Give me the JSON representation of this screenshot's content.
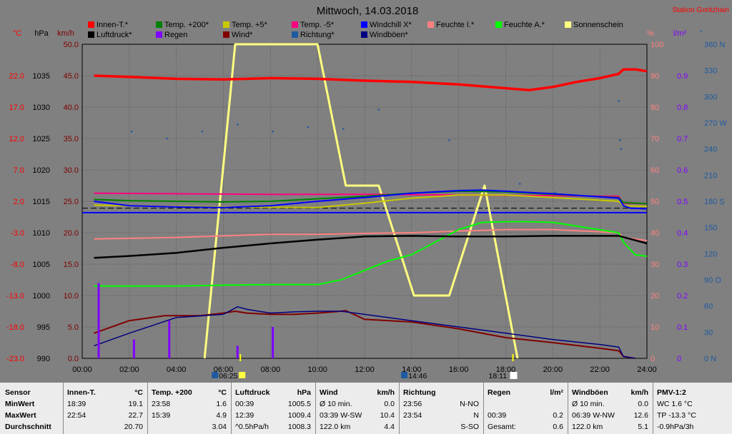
{
  "header": {
    "title": "Mittwoch, 14.03.2018",
    "station": "Station Goritzhain"
  },
  "axis_units": {
    "celsius": "°C",
    "hpa": "hPa",
    "kmh": "km/h",
    "percent": "%",
    "rain": "l/m²",
    "degree": "°"
  },
  "legend": [
    {
      "label": "Innen-T.*",
      "color": "#ff0000"
    },
    {
      "label": "Luftdruck*",
      "color": "#000000"
    },
    {
      "label": "Temp. +200*",
      "color": "#008000"
    },
    {
      "label": "Regen",
      "color": "#8000ff"
    },
    {
      "label": "Temp. +5*",
      "color": "#c8c800"
    },
    {
      "label": "Wind*",
      "color": "#800000"
    },
    {
      "label": "Temp. -5*",
      "color": "#ff0080"
    },
    {
      "label": "Richtung*",
      "color": "#1e5aa0"
    },
    {
      "label": "Windchill X*",
      "color": "#0000ff"
    },
    {
      "label": "Windböen*",
      "color": "#000080"
    },
    {
      "label": "Feuchte I.*",
      "color": "#ff8080"
    },
    {
      "label": "Feuchte A.*",
      "color": "#00ff00"
    },
    {
      "label": "Sonnenschein",
      "color": "#ffff80"
    }
  ],
  "chart_data": {
    "type": "line",
    "title": "Mittwoch, 14.03.2018",
    "x_ticks": [
      "00:00",
      "02:00",
      "04:00",
      "06:00",
      "08:00",
      "10:00",
      "12:00",
      "14:00",
      "16:00",
      "18:00",
      "20:00",
      "22:00",
      "24:00"
    ],
    "axes": {
      "temp_c": {
        "ticks": [
          "22.0",
          "17.0",
          "12.0",
          "7.0",
          "2.0",
          "-3.0",
          "-8.0",
          "-13.0",
          "-18.0",
          "-23.0"
        ],
        "range": [
          -23,
          27
        ]
      },
      "pressure_hpa": {
        "ticks": [
          "1035",
          "1030",
          "1025",
          "1020",
          "1015",
          "1010",
          "1005",
          "1000",
          "995",
          "990"
        ],
        "range": [
          990,
          1040
        ]
      },
      "wind_kmh": {
        "ticks": [
          "50.0",
          "45.0",
          "40.0",
          "35.0",
          "30.0",
          "25.0",
          "20.0",
          "15.0",
          "10.0",
          "5.0",
          "0.0"
        ],
        "range": [
          0,
          50
        ]
      },
      "humidity_pct": {
        "ticks": [
          "100",
          "90",
          "80",
          "70",
          "60",
          "50",
          "40",
          "30",
          "20",
          "10",
          "0"
        ],
        "range": [
          0,
          100
        ]
      },
      "rain_lm2": {
        "ticks": [
          "0.9",
          "0.8",
          "0.7",
          "0.6",
          "0.5",
          "0.4",
          "0.3",
          "0.2",
          "0.1",
          "0"
        ],
        "range": [
          0,
          1.0
        ]
      },
      "direction_deg": {
        "ticks": [
          "360 N",
          "330",
          "300",
          "270 W",
          "240",
          "210",
          "180 S",
          "150",
          "120",
          "90 O",
          "60",
          "30",
          "0 N"
        ],
        "range": [
          0,
          360
        ]
      }
    },
    "series": [
      {
        "name": "Innen-T.*",
        "axis": "temp_c",
        "x": [
          0.5,
          2,
          4,
          6,
          8,
          10,
          12,
          14,
          16,
          18,
          19,
          20,
          21,
          22,
          22.8,
          23,
          23.5,
          24
        ],
        "y": [
          22.0,
          21.8,
          21.5,
          21.4,
          21.6,
          21.5,
          21.2,
          21.0,
          20.6,
          20.0,
          19.7,
          20.2,
          21.0,
          21.6,
          22.3,
          23.0,
          23.0,
          22.7
        ]
      },
      {
        "name": "Temp. -5*",
        "axis": "temp_c",
        "x": [
          0.5,
          4,
          8,
          12,
          16,
          20,
          22.8,
          23,
          24
        ],
        "y": [
          3.3,
          3.2,
          3.1,
          3.1,
          3.0,
          2.9,
          2.8,
          1.7,
          1.6
        ]
      },
      {
        "name": "Temp. +5*",
        "axis": "temp_c",
        "x": [
          0.5,
          3,
          6,
          10,
          12,
          14,
          16,
          18,
          20,
          22.8,
          23,
          24
        ],
        "y": [
          1.4,
          1.2,
          1.1,
          1.0,
          1.7,
          2.5,
          3.0,
          3.0,
          2.6,
          2.0,
          1.3,
          1.2
        ]
      },
      {
        "name": "Temp. +200*",
        "axis": "temp_c",
        "x": [
          0.5,
          2,
          4,
          6,
          8,
          10,
          12,
          14,
          16,
          18,
          20,
          22.8,
          23,
          24
        ],
        "y": [
          2.3,
          2.1,
          2.0,
          1.9,
          2.0,
          2.4,
          2.8,
          3.3,
          3.6,
          3.5,
          3.1,
          2.6,
          1.8,
          1.6
        ]
      },
      {
        "name": "Windchill X*",
        "axis": "temp_c",
        "x": [
          0.5,
          2,
          4,
          6,
          8,
          10,
          12,
          14,
          16,
          17,
          18,
          20,
          22,
          22.8,
          23,
          23.3,
          24
        ],
        "y": [
          2.0,
          1.3,
          1.1,
          1.0,
          1.3,
          2.0,
          2.6,
          3.3,
          3.7,
          3.8,
          3.6,
          3.2,
          2.7,
          2.5,
          1.3,
          0.9,
          0.8
        ]
      },
      {
        "name": "Luftdruck*",
        "axis": "pressure_hpa",
        "x": [
          0.5,
          2,
          4,
          6,
          8,
          10,
          12,
          14,
          16,
          18,
          20,
          22,
          22.8,
          24
        ],
        "y": [
          1006.0,
          1006.3,
          1006.8,
          1007.6,
          1008.3,
          1008.9,
          1009.4,
          1009.5,
          1009.4,
          1009.4,
          1009.5,
          1009.5,
          1009.5,
          1008.3
        ]
      },
      {
        "name": "Feuchte I.*",
        "axis": "humidity_pct",
        "x": [
          0.5,
          2,
          4,
          6,
          8,
          10,
          12,
          14,
          16,
          18,
          20,
          22.8,
          23,
          24
        ],
        "y": [
          38.0,
          38.2,
          38.5,
          39.0,
          39.5,
          39.5,
          39.8,
          40.0,
          40.5,
          41.0,
          41.0,
          40.0,
          38.5,
          37.5
        ]
      },
      {
        "name": "Feuchte A.*",
        "axis": "humidity_pct",
        "x": [
          0.5,
          2,
          4,
          6,
          8,
          10,
          11,
          12,
          13,
          14,
          15,
          16,
          17,
          18,
          19,
          20,
          22.8,
          23,
          23.5,
          24
        ],
        "y": [
          23.0,
          23.0,
          23.0,
          23.3,
          23.5,
          23.5,
          25.0,
          28.0,
          31.0,
          33.0,
          37.0,
          41.0,
          43.3,
          43.5,
          43.5,
          43.3,
          40.0,
          37.0,
          33.0,
          32.5
        ]
      },
      {
        "name": "Wind*",
        "axis": "wind_kmh",
        "x": [
          0.5,
          2,
          3.5,
          4,
          5,
          6,
          6.5,
          7,
          8,
          9,
          10,
          11,
          11.2,
          12,
          14,
          16,
          18,
          20,
          22,
          22.8,
          23,
          23.5
        ],
        "y": [
          4.0,
          6.0,
          6.8,
          6.8,
          6.8,
          7.2,
          7.5,
          7.2,
          7.0,
          7.0,
          7.2,
          7.5,
          7.6,
          6.2,
          5.8,
          4.7,
          3.3,
          2.5,
          1.6,
          1.2,
          0.3,
          0
        ]
      },
      {
        "name": "Windböen*",
        "axis": "wind_kmh",
        "x": [
          0.5,
          2,
          4,
          6,
          6.6,
          7,
          8,
          9,
          10,
          11,
          12,
          14,
          16,
          18,
          20,
          22,
          22.8,
          23,
          23.5
        ],
        "y": [
          2.0,
          4.0,
          6.5,
          7.0,
          8.2,
          7.8,
          7.2,
          7.4,
          7.5,
          7.5,
          7.0,
          6.0,
          5.0,
          4.0,
          3.0,
          2.2,
          1.8,
          0.3,
          0
        ]
      },
      {
        "name": "Sonnenschein",
        "axis": "humidity_pct",
        "x": [
          5.2,
          6.5,
          8.0,
          10.0,
          11.2,
          12.6,
          14.1,
          15.6,
          17.1,
          18.5
        ],
        "y": [
          0,
          100,
          100,
          100,
          55,
          55,
          20,
          20,
          55,
          0
        ]
      },
      {
        "name": "Richtung*",
        "axis": "direction_deg",
        "type": "scatter",
        "x": [
          2.1,
          3.6,
          5.1,
          6.6,
          8.1,
          9.6,
          11.1,
          12.6,
          15.6,
          18.6,
          20.1,
          22.8,
          22.85,
          22.9
        ],
        "y": [
          260,
          252,
          260,
          268,
          260,
          265,
          263,
          285,
          250,
          200,
          190,
          295,
          250,
          240
        ]
      },
      {
        "name": "Regen",
        "axis": "rain_lm2",
        "type": "bar",
        "x": [
          0.7,
          2.2,
          3.7,
          6.6,
          8.1
        ],
        "y": [
          0.24,
          0.06,
          0.12,
          0.04,
          0.1
        ]
      }
    ],
    "hlines": [
      {
        "axis": "temp_c",
        "value": 0.9,
        "color": "#000000",
        "style": "dashed"
      },
      {
        "axis": "temp_c",
        "value": 0.2,
        "color": "#0000ff",
        "style": "solid"
      }
    ],
    "sun_events": {
      "sunrise": "06:25",
      "noon": "14:46",
      "sunset": "18:11"
    }
  },
  "stats": {
    "sensor": {
      "header": "Sensor",
      "rows": [
        "MinWert",
        "MaxWert",
        "Durchschnitt"
      ]
    },
    "columns": [
      {
        "name": "Innen-T.",
        "unit": "°C",
        "min_time": "18:39",
        "min": "19.1",
        "max_time": "22:54",
        "max": "22.7",
        "avg_label": "",
        "avg": "20.70"
      },
      {
        "name": "Temp. +200",
        "unit": "°C",
        "min_time": "23:58",
        "min": "1.6",
        "max_time": "15:39",
        "max": "4.9",
        "avg_label": "",
        "avg": "3.04"
      },
      {
        "name": "Luftdruck",
        "unit": "hPa",
        "min_time": "00:39",
        "min": "1005.5",
        "max_time": "12:39",
        "max": "1009.4",
        "avg_label": "^0.5hPa/h",
        "avg": "1008.3"
      },
      {
        "name": "Wind",
        "unit": "km/h",
        "min_time": "Ø 10 min.",
        "min": "0.0",
        "max_time": "03:39  W-SW",
        "max": "10.4",
        "avg_label": "122.0 km",
        "avg": "4.4"
      },
      {
        "name": "Richtung",
        "unit": "",
        "min_time": "23:56",
        "min": "N-NO",
        "max_time": "23:54",
        "max": "N",
        "avg_label": "",
        "avg": "S-SO"
      },
      {
        "name": "Regen",
        "unit": "l/m²",
        "min_time": "",
        "min": "",
        "max_time": "00:39",
        "max": "0.2",
        "avg_label": "Gesamt:",
        "avg": "0.6"
      },
      {
        "name": "Windböen",
        "unit": "km/h",
        "min_time": "Ø 10 min.",
        "min": "0.0",
        "max_time": "06:39  W-NW",
        "max": "12.6",
        "avg_label": "122.0 km",
        "avg": "5.1"
      },
      {
        "name": "PMV-1:2",
        "unit": "",
        "min_time": "WC 1.6 °C",
        "min": "",
        "max_time": "TP -13.3 °C",
        "max": "",
        "avg_label": "-0.9hPa/3h",
        "avg": ""
      }
    ]
  }
}
